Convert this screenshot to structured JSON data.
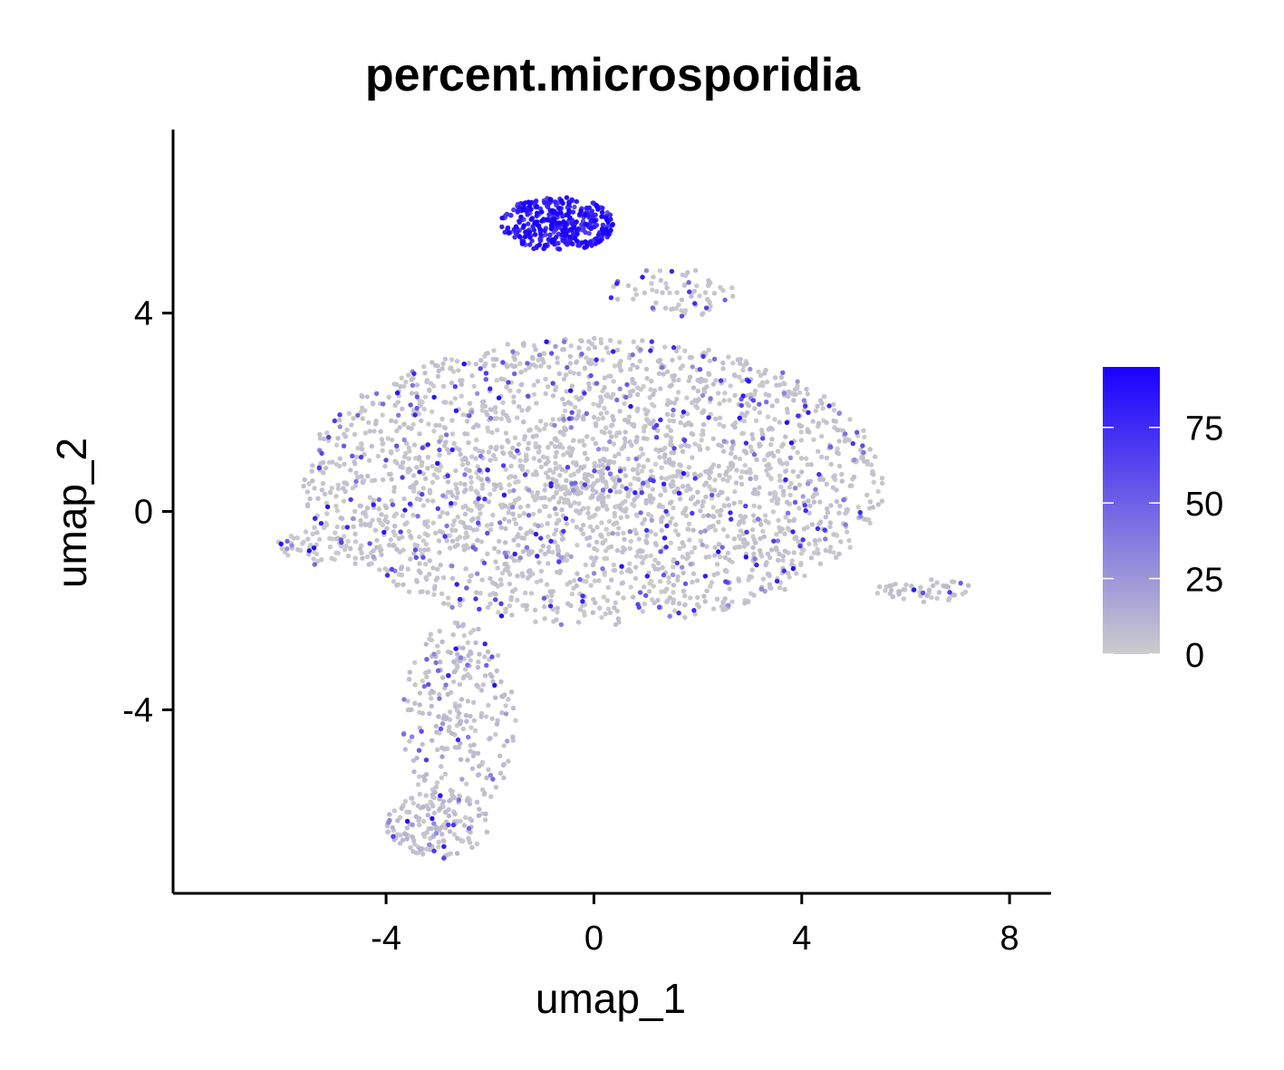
{
  "chart_data": {
    "type": "scatter",
    "title": "percent.microsporidia",
    "xlabel": "umap_1",
    "ylabel": "umap_2",
    "xlim": [
      -8.1,
      8.8
    ],
    "ylim": [
      -7.7,
      7.7
    ],
    "x_ticks": [
      -4,
      0,
      4,
      8
    ],
    "y_ticks": [
      -4,
      0,
      4
    ],
    "x_tick_labels": [
      "-4",
      "0",
      "4",
      "8"
    ],
    "y_tick_labels": [
      "-4",
      "0",
      "4"
    ],
    "grid": false,
    "color_scale": {
      "low_color": "#cccccc",
      "high_color": "#1a00ff",
      "min": 0,
      "max": 95,
      "ticks": [
        0,
        25,
        50,
        75
      ],
      "tick_labels": [
        "0",
        "25",
        "50",
        "75"
      ],
      "legend_position": "right"
    },
    "regions": [
      {
        "cx": 0.0,
        "cy": 0.6,
        "rx": 5.6,
        "ry": 2.9,
        "n": 2600,
        "color_mean": 12
      },
      {
        "cx": -2.6,
        "cy": -4.2,
        "rx": 1.1,
        "ry": 2.0,
        "n": 260,
        "color_mean": 18
      },
      {
        "cx": -3.0,
        "cy": -6.3,
        "rx": 1.0,
        "ry": 0.7,
        "n": 160,
        "color_mean": 20
      },
      {
        "cx": -0.7,
        "cy": 5.8,
        "rx": 1.1,
        "ry": 0.55,
        "n": 380,
        "color_mean": 80
      },
      {
        "cx": 1.5,
        "cy": 4.4,
        "rx": 1.2,
        "ry": 0.5,
        "n": 70,
        "color_mean": 10
      },
      {
        "cx": -5.4,
        "cy": -0.7,
        "rx": 0.7,
        "ry": 0.4,
        "n": 50,
        "color_mean": 6
      },
      {
        "cx": 6.4,
        "cy": -1.6,
        "rx": 1.0,
        "ry": 0.25,
        "n": 50,
        "color_mean": 15
      }
    ]
  }
}
